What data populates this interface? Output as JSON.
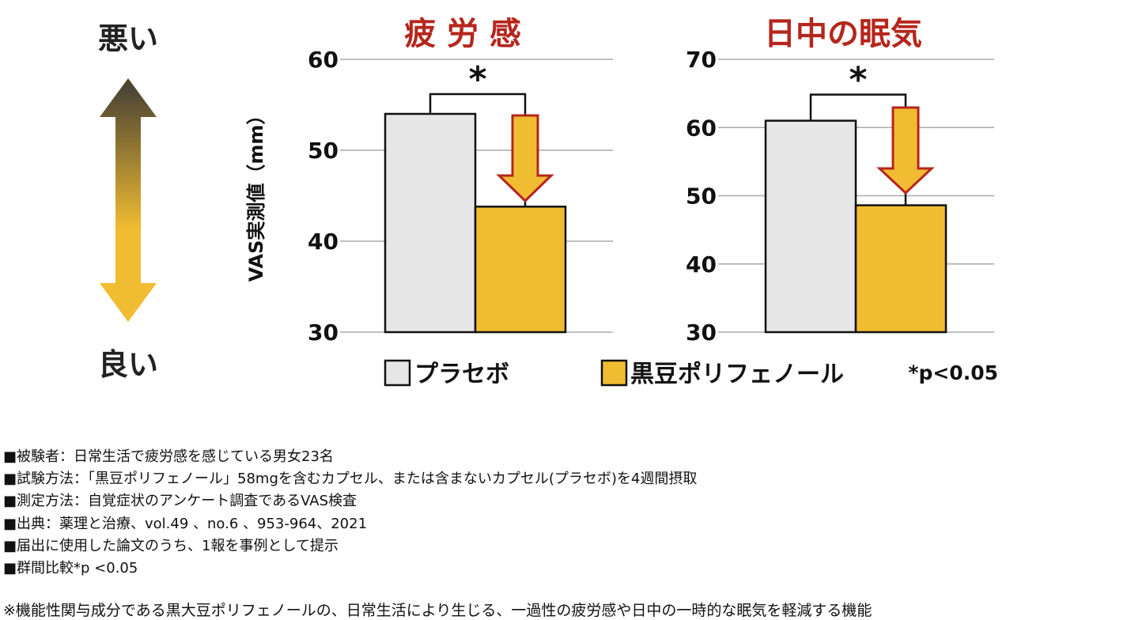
{
  "scale_indicator": {
    "top_label": "悪い",
    "bottom_label": "良い"
  },
  "colors": {
    "title": "#b5261c",
    "placebo_fill": "#e6e6e6",
    "treatment_fill": "#f0bc32",
    "arrow_fill": "#f0bc32",
    "arrow_stroke": "#b5261c",
    "scale_arrow_top": "#4e4635",
    "scale_arrow_bottom": "#f0bc32",
    "gridline": "#aaaaaa"
  },
  "chart_data": [
    {
      "type": "bar",
      "title": "疲 労 感",
      "ylabel": "VAS実測値（mm）",
      "ylim": [
        30,
        60
      ],
      "yticks": [
        30,
        40,
        50,
        60
      ],
      "grid": true,
      "categories": [
        "プラセボ",
        "黒豆ポリフェノール"
      ],
      "values": [
        54.0,
        43.8
      ],
      "significance": "*"
    },
    {
      "type": "bar",
      "title": "日中の眠気",
      "ylabel": "",
      "ylim": [
        30,
        70
      ],
      "yticks": [
        30,
        40,
        50,
        60,
        70
      ],
      "grid": true,
      "categories": [
        "プラセボ",
        "黒豆ポリフェノール"
      ],
      "values": [
        61.0,
        48.6
      ],
      "significance": "*"
    }
  ],
  "legend": {
    "placement": "bottom",
    "items": [
      {
        "label": "プラセボ",
        "color_key": "placebo_fill"
      },
      {
        "label": "黒豆ポリフェノール",
        "color_key": "treatment_fill"
      }
    ],
    "pvalue_note": "*p<0.05"
  },
  "notes": [
    "■被験者：日常生活で疲労感を感じている男女23名",
    "■試験方法：「黒豆ポリフェノール」58mgを含むカプセル、または含まないカプセル(プラセボ)を4週間摂取",
    "■測定方法：自覚症状のアンケート調査であるVAS検査",
    "■出典：薬理と治療、vol.49 、no.6 、953-964、2021",
    "■届出に使用した論文のうち、1報を事例として提示",
    "■群間比較*p <0.05"
  ],
  "footnote": "※機能性関与成分である黒大豆ポリフェノールの、日常生活により生じる、一過性の疲労感や日中の一時的な眠気を軽減する機能"
}
